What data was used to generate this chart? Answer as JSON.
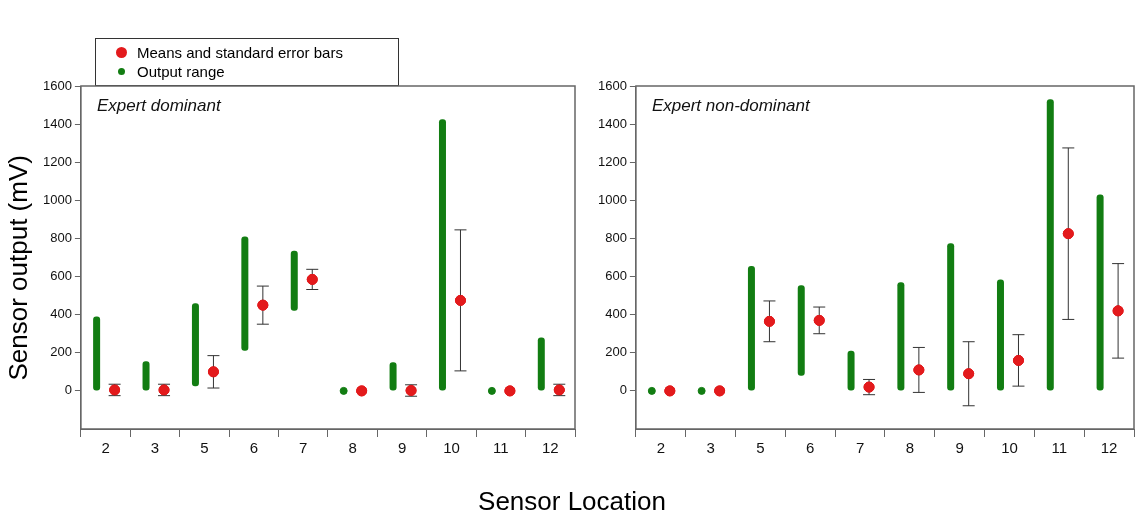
{
  "chart_data": [
    {
      "type": "bar",
      "title": "Expert dominant",
      "ylabel": "Sensor output (mV)",
      "xlabel": "Sensor Location",
      "legend": "top left",
      "grid": false,
      "categories": [
        "2",
        "3",
        "5",
        "6",
        "7",
        "8",
        "9",
        "10",
        "11",
        "12"
      ],
      "ylim": [
        -200,
        1600
      ],
      "yticks": [
        0,
        200,
        400,
        600,
        800,
        1000,
        1200,
        1400,
        1600
      ],
      "series": [
        {
          "name": "Output range",
          "type": "bar",
          "color": "#127d12",
          "base": [
            0,
            0,
            25,
            210,
            420,
            null,
            0,
            0,
            null,
            0
          ],
          "values": [
            390,
            155,
            435,
            600,
            315,
            null,
            150,
            1425,
            null,
            280
          ]
        },
        {
          "type": "scatter",
          "color": "#127d12",
          "values": [
            null,
            null,
            null,
            null,
            null,
            0,
            null,
            null,
            0,
            null
          ]
        },
        {
          "name": "Means and standard error bars",
          "type": "scatter",
          "color": "#e31a1c",
          "values": [
            5,
            5,
            100,
            450,
            585,
            0,
            2,
            475,
            0,
            5
          ],
          "errors": [
            30,
            30,
            85,
            100,
            53,
            null,
            30,
            370,
            null,
            30
          ]
        }
      ]
    },
    {
      "type": "bar",
      "title": "Expert non-dominant",
      "legend": false,
      "grid": false,
      "categories": [
        "2",
        "3",
        "5",
        "6",
        "7",
        "8",
        "9",
        "10",
        "11",
        "12"
      ],
      "ylim": [
        -200,
        1600
      ],
      "yticks": [
        0,
        200,
        400,
        600,
        800,
        1000,
        1200,
        1400,
        1600
      ],
      "series": [
        {
          "type": "bar",
          "color": "#127d12",
          "base": [
            null,
            null,
            0,
            80,
            0,
            0,
            0,
            0,
            0,
            0
          ],
          "values": [
            null,
            null,
            655,
            475,
            210,
            570,
            775,
            585,
            1530,
            1030
          ]
        },
        {
          "type": "scatter",
          "color": "#127d12",
          "values": [
            0,
            0,
            null,
            null,
            null,
            null,
            null,
            null,
            null,
            null
          ]
        },
        {
          "type": "scatter",
          "color": "#e31a1c",
          "values": [
            0,
            0,
            365,
            370,
            20,
            110,
            90,
            160,
            825,
            420
          ],
          "errors": [
            null,
            null,
            107,
            70,
            40,
            118,
            168,
            135,
            450,
            248
          ]
        }
      ]
    }
  ]
}
